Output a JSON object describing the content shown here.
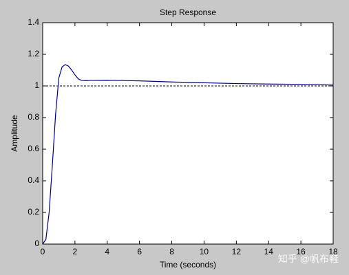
{
  "chart_data": {
    "type": "line",
    "title": "Step Response",
    "x_label": "Time (seconds)",
    "y_label": "Amplitude",
    "x": [
      0,
      0.2,
      0.4,
      0.6,
      0.8,
      1.0,
      1.2,
      1.4,
      1.6,
      1.8,
      2.0,
      2.2,
      2.4,
      2.7,
      3,
      4,
      5,
      6,
      8,
      10,
      12,
      14,
      16,
      18
    ],
    "series": [
      {
        "name": "Step response",
        "color": "#00007f",
        "values": [
          0,
          0.03,
          0.2,
          0.5,
          0.82,
          1.05,
          1.12,
          1.135,
          1.125,
          1.1,
          1.07,
          1.045,
          1.035,
          1.033,
          1.035,
          1.036,
          1.034,
          1.032,
          1.025,
          1.02,
          1.015,
          1.012,
          1.01,
          1.006
        ]
      }
    ],
    "reference": 1,
    "xlim": [
      0,
      18
    ],
    "xticks": [
      0,
      2,
      4,
      6,
      8,
      10,
      12,
      14,
      16,
      18
    ],
    "ylim": [
      0,
      1.4
    ],
    "yticks": [
      0,
      0.2,
      0.4,
      0.6,
      0.8,
      1,
      1.2,
      1.4
    ],
    "watermark": "知乎 @帆布鞋"
  }
}
